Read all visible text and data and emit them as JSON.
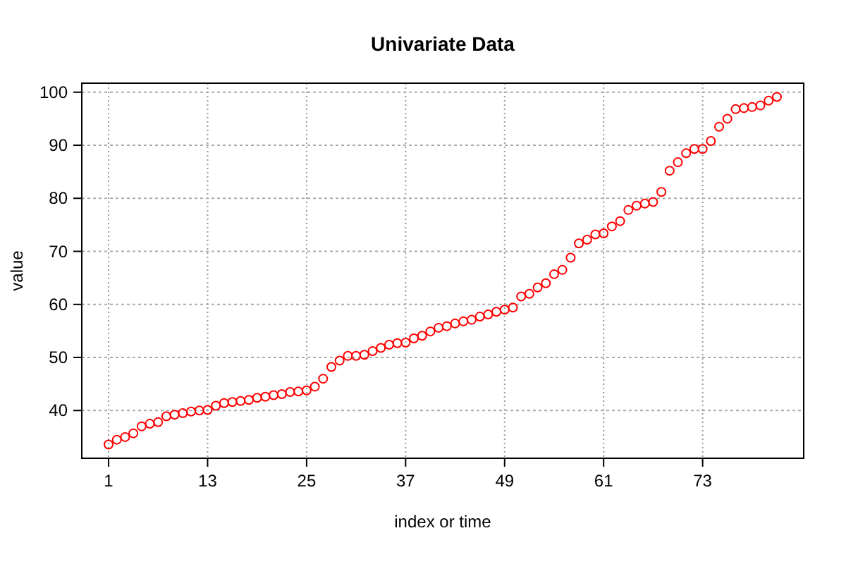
{
  "chart_data": {
    "type": "scatter",
    "title": "Univariate Data",
    "xlabel": "index or time",
    "ylabel": "value",
    "x": [
      1,
      2,
      3,
      4,
      5,
      6,
      7,
      8,
      9,
      10,
      11,
      12,
      13,
      14,
      15,
      16,
      17,
      18,
      19,
      20,
      21,
      22,
      23,
      24,
      25,
      26,
      27,
      28,
      29,
      30,
      31,
      32,
      33,
      34,
      35,
      36,
      37,
      38,
      39,
      40,
      41,
      42,
      43,
      44,
      45,
      46,
      47,
      48,
      49,
      50,
      51,
      52,
      53,
      54,
      55,
      56,
      57,
      58,
      59,
      60,
      61,
      62,
      63,
      64,
      65,
      66,
      67,
      68,
      69,
      70,
      71,
      72,
      73,
      74,
      75,
      76,
      77,
      78,
      79,
      80,
      81,
      82
    ],
    "series": [
      {
        "color": "#ff0000",
        "values": [
          33.6,
          34.5,
          35,
          35.7,
          37,
          37.5,
          37.8,
          38.9,
          39.2,
          39.5,
          39.8,
          40,
          40.1,
          40.9,
          41.4,
          41.6,
          41.8,
          42,
          42.4,
          42.6,
          42.9,
          43.1,
          43.5,
          43.6,
          43.8,
          44.5,
          46,
          48.2,
          49.4,
          50.3,
          50.3,
          50.5,
          51.2,
          51.8,
          52.4,
          52.7,
          52.8,
          53.6,
          54.1,
          54.9,
          55.6,
          55.9,
          56.4,
          56.8,
          57.1,
          57.7,
          58.1,
          58.6,
          59,
          59.4,
          61.5,
          62,
          63.2,
          64,
          65.7,
          66.5,
          68.8,
          71.5,
          72.2,
          73.2,
          73.4,
          74.7,
          75.7,
          77.8,
          78.6,
          79,
          79.3,
          81.2,
          85.2,
          86.8,
          88.5,
          89.3,
          89.3,
          90.8,
          93.5,
          95,
          96.8,
          97,
          97.2,
          97.5,
          98.4,
          99.1
        ]
      }
    ],
    "xlim": [
      -2.25,
      85.25
    ],
    "ylim": [
      31,
      101.7
    ],
    "xticks": [
      1,
      13,
      25,
      37,
      49,
      61,
      73
    ],
    "yticks": [
      40,
      50,
      60,
      70,
      80,
      90,
      100
    ],
    "grid": true,
    "marker": "circle"
  }
}
